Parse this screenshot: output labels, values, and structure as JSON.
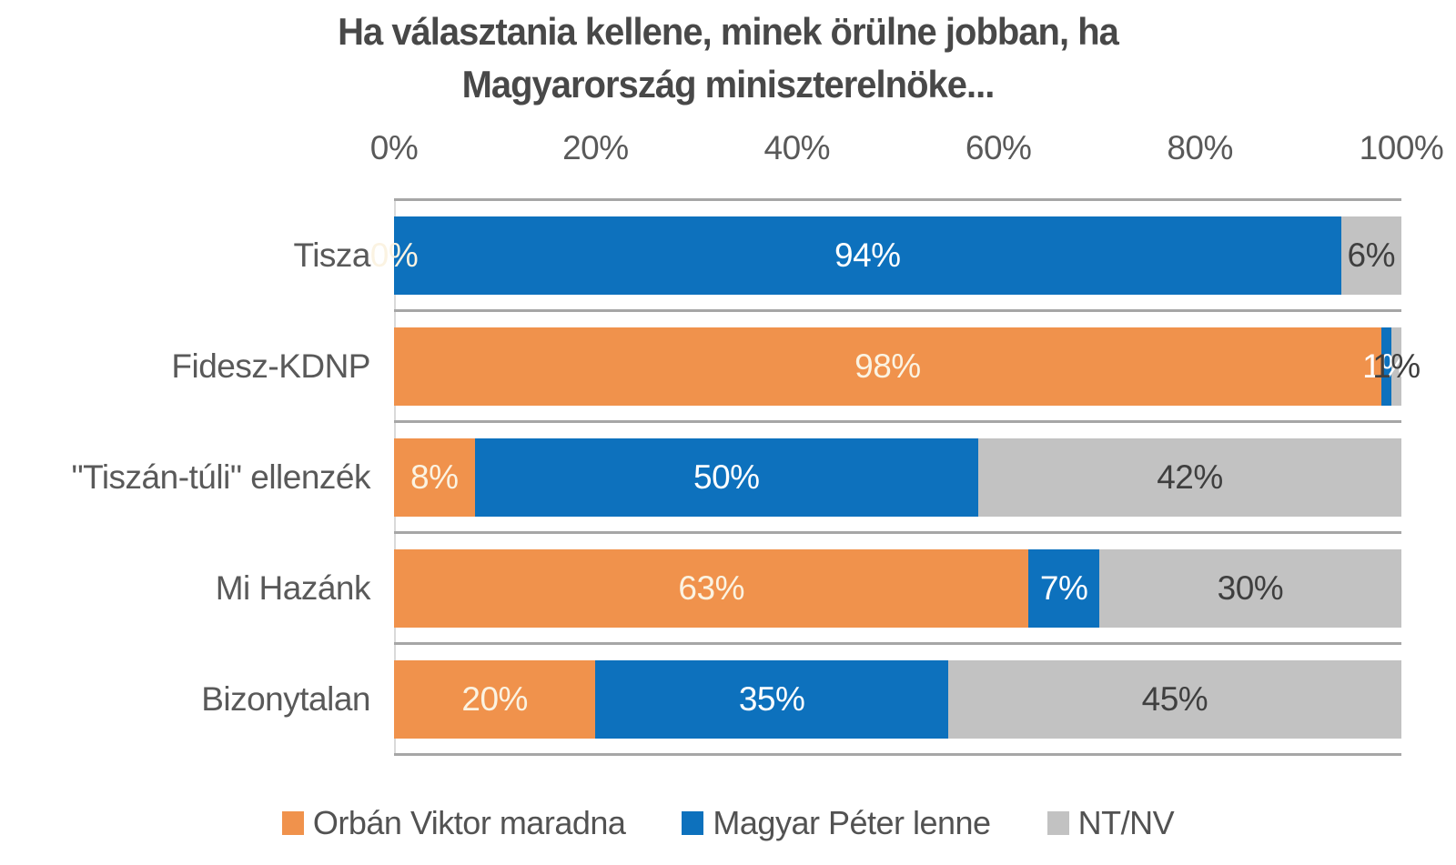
{
  "title": {
    "line1": "Ha választania kellene, minek örülne jobban, ha",
    "line2": "Magyarország miniszterelnöke..."
  },
  "chart_data": {
    "type": "bar",
    "orientation": "horizontal",
    "stacked": true,
    "title": "Ha választania kellene, minek örülne jobban, ha Magyarország miniszterelnöke...",
    "categories": [
      "Tisza",
      "Fidesz-KDNP",
      "\"Tiszán-túli\" ellenzék",
      "Mi Hazánk",
      "Bizonytalan"
    ],
    "x_ticks": [
      "0%",
      "20%",
      "40%",
      "60%",
      "80%",
      "100%"
    ],
    "xlim": [
      0,
      100
    ],
    "grid": "horizontal category separator lines",
    "legend_position": "bottom",
    "data_labels": "percent values centered inside segments",
    "series": [
      {
        "name": "Orbán Viktor maradna",
        "color": "#F0924C",
        "label_color": "#FBF3E2",
        "values": [
          0,
          98,
          8,
          63,
          20
        ]
      },
      {
        "name": "Magyar Péter lenne",
        "color": "#0D71BD",
        "label_color": "#FFFFFF",
        "values": [
          94,
          1,
          50,
          7,
          35
        ]
      },
      {
        "name": "NT/NV",
        "color": "#C2C2C2",
        "label_color": "#3F3F3F",
        "values": [
          6,
          1,
          42,
          30,
          45
        ]
      }
    ]
  },
  "style_colors": {
    "gridline": "#A6A6A6",
    "axis_line": "#D9D9D9",
    "tick_text": "#595959",
    "title_text": "#484848",
    "legend_text": "#525252"
  }
}
